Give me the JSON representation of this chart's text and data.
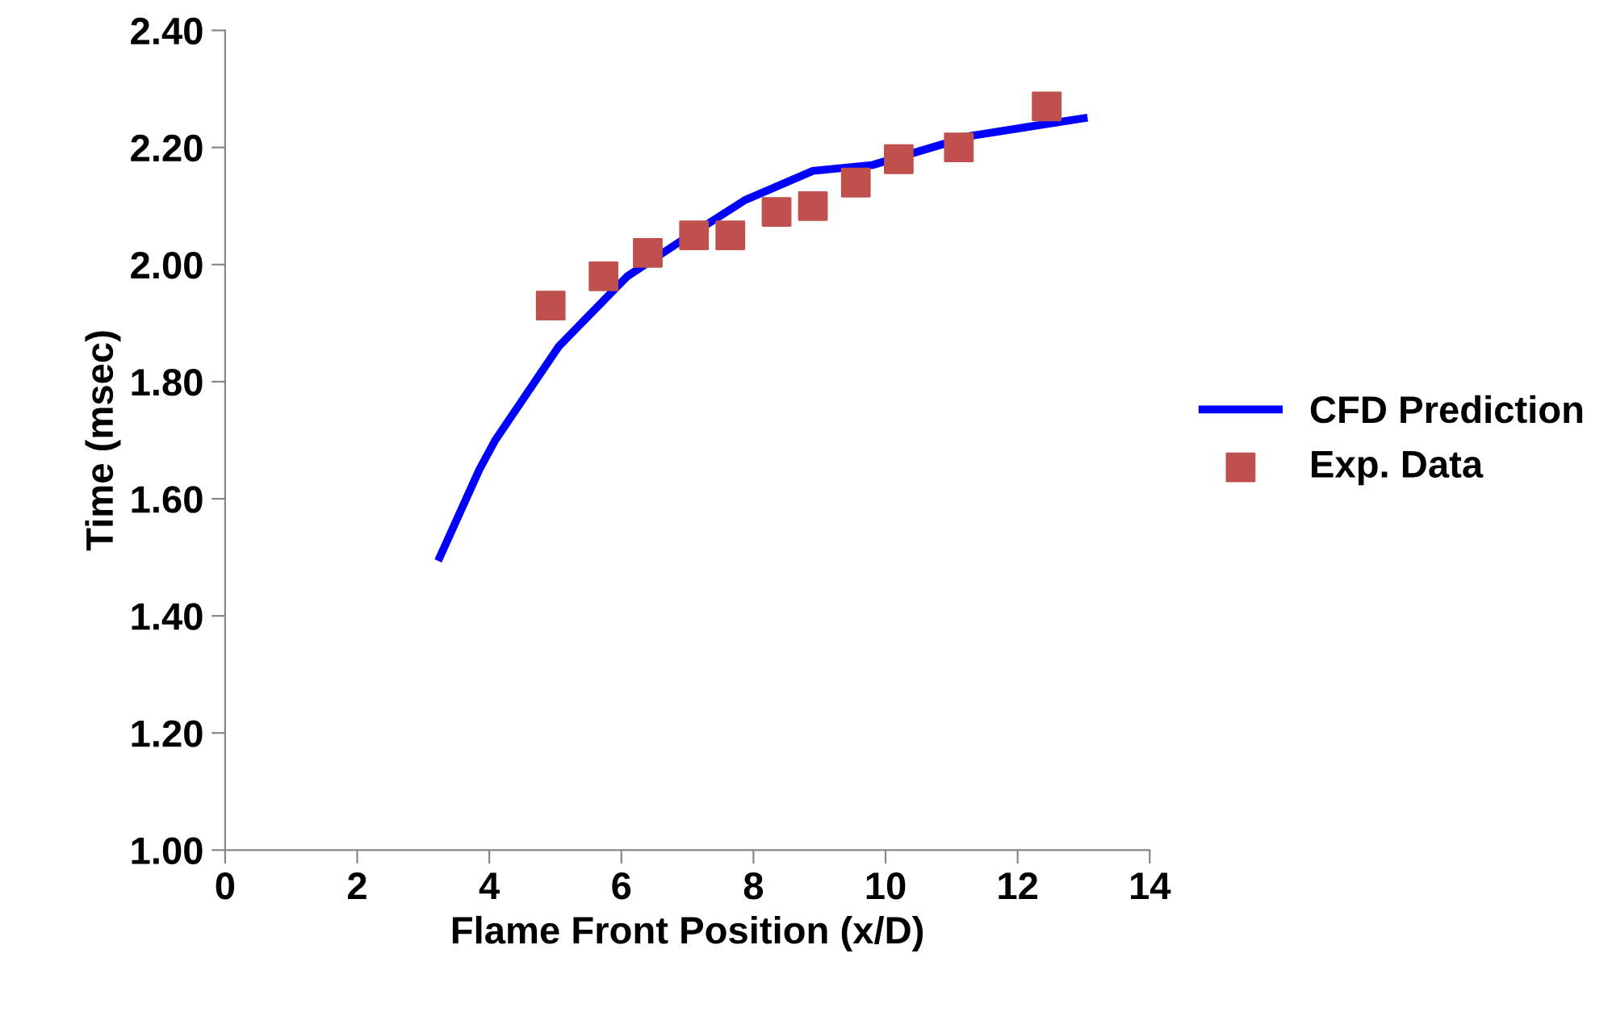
{
  "chart_data": {
    "type": "line",
    "xlabel": "Flame Front Position (x/D)",
    "ylabel": "Time (msec)",
    "xlim": [
      0,
      14
    ],
    "xticks": [
      0,
      2,
      4,
      6,
      8,
      10,
      12,
      14
    ],
    "ylim": [
      1.0,
      2.4
    ],
    "yticks": [
      {
        "value": 1.0,
        "label": "1.00"
      },
      {
        "value": 1.2,
        "label": "1.20"
      },
      {
        "value": 1.4,
        "label": "1.40"
      },
      {
        "value": 1.6,
        "label": "1.60"
      },
      {
        "value": 1.8,
        "label": "1.80"
      },
      {
        "value": 2.0,
        "label": "2.00"
      },
      {
        "value": 2.2,
        "label": "2.20"
      },
      {
        "value": 2.4,
        "label": "2.40"
      }
    ],
    "grid": false,
    "legend": "right",
    "series": [
      {
        "name": "CFD Prediction",
        "color": "#0000ff",
        "marker": "none",
        "line_style": "solid",
        "x": [
          3.25,
          3.85,
          4.09,
          5.05,
          6.09,
          6.9,
          7.87,
          8.9,
          9.8,
          11.3,
          13.0
        ],
        "values": [
          1.5,
          1.65,
          1.7,
          1.86,
          1.98,
          2.04,
          2.11,
          2.16,
          2.17,
          2.22,
          2.25
        ]
      },
      {
        "name": "Exp. Data",
        "type": "scatter",
        "color": "#c0504d",
        "marker": "square",
        "x": [
          4.93,
          5.73,
          6.4,
          7.1,
          7.65,
          8.35,
          8.9,
          9.55,
          10.2,
          11.11,
          12.44
        ],
        "values": [
          1.93,
          1.98,
          2.02,
          2.05,
          2.05,
          2.09,
          2.1,
          2.14,
          2.18,
          2.2,
          2.27
        ]
      }
    ]
  }
}
